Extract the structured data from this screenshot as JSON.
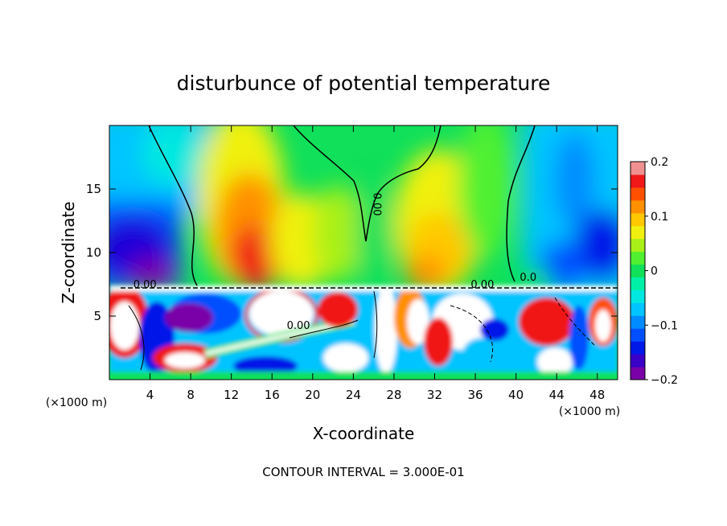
{
  "chart_data": {
    "type": "heatmap",
    "title": "disturbunce of potential temperature",
    "xlabel": "X-coordinate",
    "ylabel": "Z-coordinate",
    "x_unit_label": "(×1000 m)",
    "x_unit_label_right": "(×1000 m)",
    "footer": "CONTOUR INTERVAL = 3.000E-01",
    "xlim": [
      0,
      50
    ],
    "ylim": [
      0,
      20
    ],
    "x_ticks": [
      4,
      8,
      12,
      16,
      20,
      24,
      28,
      32,
      36,
      40,
      44,
      48
    ],
    "y_ticks": [
      5,
      10,
      15
    ],
    "colorbar": {
      "range": [
        -0.2,
        0.2
      ],
      "tick_values": [
        0.2,
        0.1,
        0,
        -0.1,
        -0.2
      ],
      "tick_labels": [
        "0.2",
        "0.1",
        "0",
        "−0.1",
        "−0.2"
      ],
      "colors": [
        "#7a00a8",
        "#3a00c8",
        "#0018e8",
        "#0050ff",
        "#008cff",
        "#00c4ff",
        "#00e8e0",
        "#00f0a8",
        "#10e05a",
        "#50f030",
        "#a8f018",
        "#f0f010",
        "#ffc800",
        "#ff9000",
        "#ff5000",
        "#f01818",
        "#f09090"
      ]
    },
    "contour_labels": [
      {
        "x": 26.0,
        "y": 13.8,
        "text": "0.00"
      },
      {
        "x": 3.5,
        "y": 7.2,
        "text": "0.00"
      },
      {
        "x": 18.6,
        "y": 4.0,
        "text": "0.00"
      },
      {
        "x": 36.7,
        "y": 7.2,
        "text": "0.00"
      },
      {
        "x": 41.2,
        "y": 7.8,
        "text": "0.0"
      }
    ],
    "grid": false,
    "legend": "colorbar-right"
  }
}
